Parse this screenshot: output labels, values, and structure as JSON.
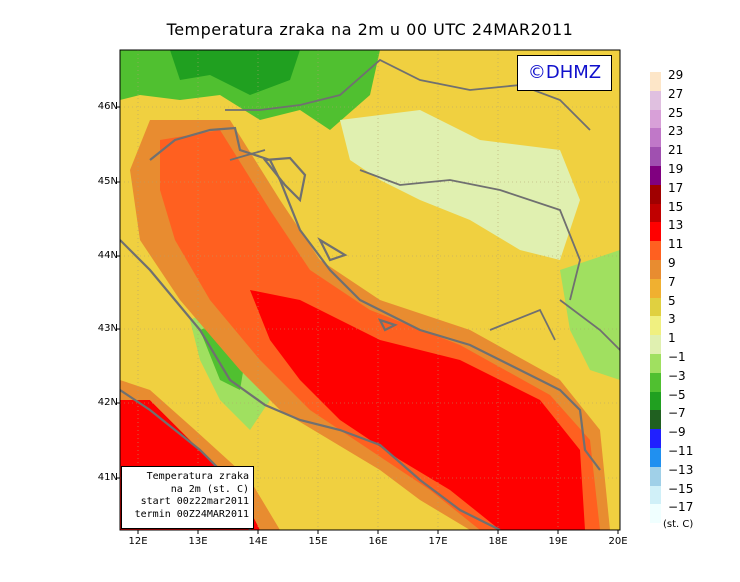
{
  "title": "Temperatura zraka na 2m u 00 UTC 24MAR2011",
  "copyright": "©DHMZ",
  "infobox": {
    "line1": "Temperatura zraka",
    "line2": "na 2m (st. C)",
    "line3": "start 00z22mar2011",
    "line4": "termin 00Z24MAR2011"
  },
  "y_ticks": [
    "46N",
    "45N",
    "44N",
    "43N",
    "42N",
    "41N"
  ],
  "x_ticks": [
    "12E",
    "13E",
    "14E",
    "15E",
    "16E",
    "17E",
    "18E",
    "19E",
    "20E"
  ],
  "legend": {
    "labels": [
      "29",
      "27",
      "25",
      "23",
      "21",
      "19",
      "17",
      "15",
      "13",
      "11",
      "9",
      "7",
      "5",
      "3",
      "1",
      "−1",
      "−3",
      "−5",
      "−7",
      "−9",
      "−11",
      "−13",
      "−15",
      "−17"
    ],
    "colors": [
      "#fde6c8",
      "#e0c0e0",
      "#d8a0d8",
      "#c078c8",
      "#a050b0",
      "#800080",
      "#a00000",
      "#c00000",
      "#ff0000",
      "#ff6020",
      "#e88c30",
      "#f0b030",
      "#e0d040",
      "#f0f080",
      "#e0f0b0",
      "#a0e060",
      "#50c030",
      "#20a020",
      "#206020",
      "#2020ff",
      "#2090f0",
      "#a0d0e8",
      "#d0f0f8",
      "#f0ffff"
    ],
    "unit": "(st. C)"
  },
  "colors": {
    "sea_warm": "#ff0000",
    "sea_mid": "#ff6020",
    "coast": "#e88c30",
    "land_warm": "#f0d040",
    "land_cool": "#e0f0b0",
    "mountains": "#50c030",
    "border": "#707070"
  }
}
